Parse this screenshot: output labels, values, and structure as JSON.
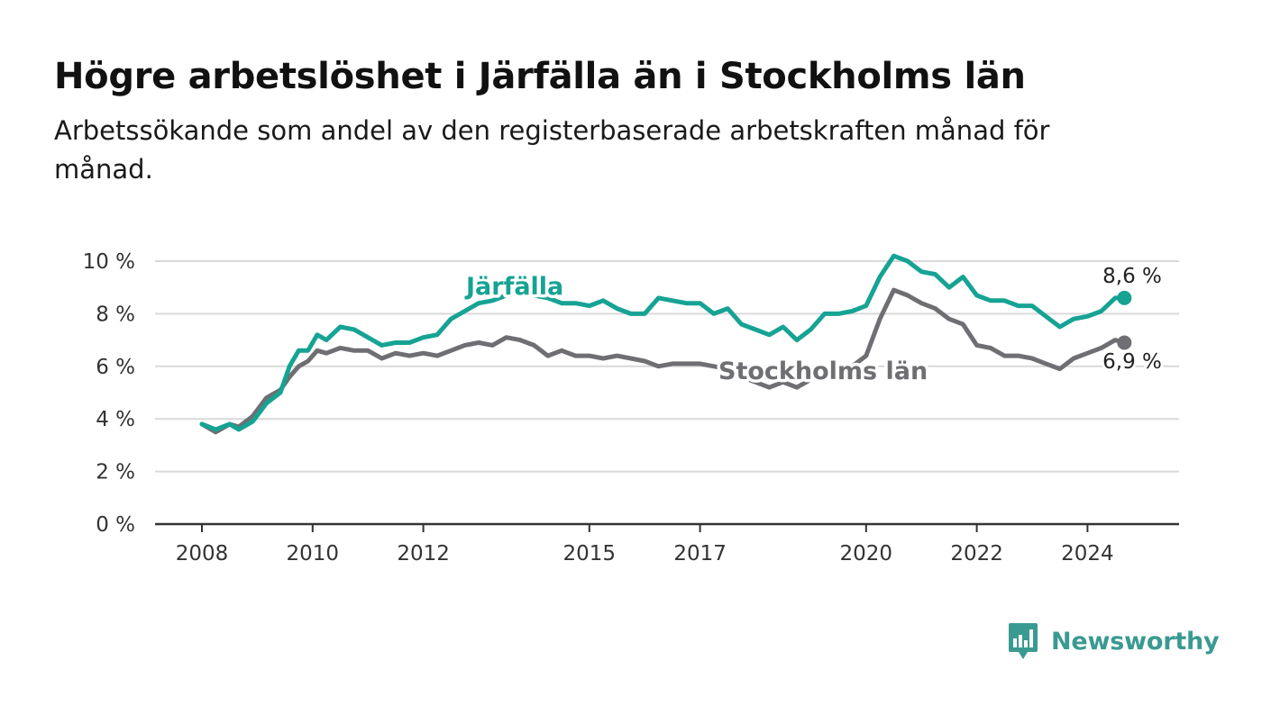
{
  "title": "Högre arbetslöshet i Järfälla än i Stockholms län",
  "subtitle": "Arbetssökande som andel av den registerbaserade arbetskraften månad för månad.",
  "brand": {
    "name": "Newsworthy",
    "color": "#3a9a92"
  },
  "chart_data": {
    "type": "line",
    "ylim": [
      0,
      10
    ],
    "y_ticks": [
      "0 %",
      "2 %",
      "4 %",
      "6 %",
      "8 %",
      "10 %"
    ],
    "x_ticks": [
      "2008",
      "2010",
      "2012",
      "2015",
      "2017",
      "2020",
      "2022",
      "2024"
    ],
    "grid": true,
    "series": [
      {
        "name": "Järfälla",
        "color": "#16a394",
        "end_label": "8,6 %",
        "points": [
          [
            "2008-01",
            3.8
          ],
          [
            "2008-04",
            3.6
          ],
          [
            "2008-07",
            3.8
          ],
          [
            "2008-09",
            3.6
          ],
          [
            "2008-12",
            3.9
          ],
          [
            "2009-03",
            4.6
          ],
          [
            "2009-06",
            5.0
          ],
          [
            "2009-08",
            6.0
          ],
          [
            "2009-10",
            6.6
          ],
          [
            "2009-12",
            6.6
          ],
          [
            "2010-02",
            7.2
          ],
          [
            "2010-04",
            7.0
          ],
          [
            "2010-07",
            7.5
          ],
          [
            "2010-10",
            7.4
          ],
          [
            "2011-01",
            7.1
          ],
          [
            "2011-04",
            6.8
          ],
          [
            "2011-07",
            6.9
          ],
          [
            "2011-10",
            6.9
          ],
          [
            "2012-01",
            7.1
          ],
          [
            "2012-04",
            7.2
          ],
          [
            "2012-07",
            7.8
          ],
          [
            "2012-10",
            8.1
          ],
          [
            "2013-01",
            8.4
          ],
          [
            "2013-04",
            8.5
          ],
          [
            "2013-07",
            8.7
          ],
          [
            "2013-10",
            8.9
          ],
          [
            "2014-01",
            8.7
          ],
          [
            "2014-04",
            8.6
          ],
          [
            "2014-07",
            8.4
          ],
          [
            "2014-10",
            8.4
          ],
          [
            "2015-01",
            8.3
          ],
          [
            "2015-04",
            8.5
          ],
          [
            "2015-07",
            8.2
          ],
          [
            "2015-10",
            8.0
          ],
          [
            "2016-01",
            8.0
          ],
          [
            "2016-04",
            8.6
          ],
          [
            "2016-07",
            8.5
          ],
          [
            "2016-10",
            8.4
          ],
          [
            "2017-01",
            8.4
          ],
          [
            "2017-04",
            8.0
          ],
          [
            "2017-07",
            8.2
          ],
          [
            "2017-10",
            7.6
          ],
          [
            "2018-01",
            7.4
          ],
          [
            "2018-04",
            7.2
          ],
          [
            "2018-07",
            7.5
          ],
          [
            "2018-10",
            7.0
          ],
          [
            "2019-01",
            7.4
          ],
          [
            "2019-04",
            8.0
          ],
          [
            "2019-07",
            8.0
          ],
          [
            "2019-10",
            8.1
          ],
          [
            "2020-01",
            8.3
          ],
          [
            "2020-04",
            9.4
          ],
          [
            "2020-07",
            10.2
          ],
          [
            "2020-10",
            10.0
          ],
          [
            "2021-01",
            9.6
          ],
          [
            "2021-04",
            9.5
          ],
          [
            "2021-07",
            9.0
          ],
          [
            "2021-10",
            9.4
          ],
          [
            "2022-01",
            8.7
          ],
          [
            "2022-04",
            8.5
          ],
          [
            "2022-07",
            8.5
          ],
          [
            "2022-10",
            8.3
          ],
          [
            "2023-01",
            8.3
          ],
          [
            "2023-04",
            7.9
          ],
          [
            "2023-07",
            7.5
          ],
          [
            "2023-10",
            7.8
          ],
          [
            "2024-01",
            7.9
          ],
          [
            "2024-04",
            8.1
          ],
          [
            "2024-07",
            8.6
          ],
          [
            "2024-09",
            8.6
          ]
        ]
      },
      {
        "name": "Stockholms län",
        "color": "#6f6e72",
        "end_label": "6,9 %",
        "points": [
          [
            "2008-01",
            3.8
          ],
          [
            "2008-04",
            3.5
          ],
          [
            "2008-07",
            3.8
          ],
          [
            "2008-09",
            3.7
          ],
          [
            "2008-12",
            4.1
          ],
          [
            "2009-03",
            4.8
          ],
          [
            "2009-06",
            5.1
          ],
          [
            "2009-08",
            5.6
          ],
          [
            "2009-10",
            6.0
          ],
          [
            "2009-12",
            6.2
          ],
          [
            "2010-02",
            6.6
          ],
          [
            "2010-04",
            6.5
          ],
          [
            "2010-07",
            6.7
          ],
          [
            "2010-10",
            6.6
          ],
          [
            "2011-01",
            6.6
          ],
          [
            "2011-04",
            6.3
          ],
          [
            "2011-07",
            6.5
          ],
          [
            "2011-10",
            6.4
          ],
          [
            "2012-01",
            6.5
          ],
          [
            "2012-04",
            6.4
          ],
          [
            "2012-07",
            6.6
          ],
          [
            "2012-10",
            6.8
          ],
          [
            "2013-01",
            6.9
          ],
          [
            "2013-04",
            6.8
          ],
          [
            "2013-07",
            7.1
          ],
          [
            "2013-10",
            7.0
          ],
          [
            "2014-01",
            6.8
          ],
          [
            "2014-04",
            6.4
          ],
          [
            "2014-07",
            6.6
          ],
          [
            "2014-10",
            6.4
          ],
          [
            "2015-01",
            6.4
          ],
          [
            "2015-04",
            6.3
          ],
          [
            "2015-07",
            6.4
          ],
          [
            "2015-10",
            6.3
          ],
          [
            "2016-01",
            6.2
          ],
          [
            "2016-04",
            6.0
          ],
          [
            "2016-07",
            6.1
          ],
          [
            "2016-10",
            6.1
          ],
          [
            "2017-01",
            6.1
          ],
          [
            "2017-04",
            6.0
          ],
          [
            "2017-07",
            5.9
          ],
          [
            "2017-10",
            5.6
          ],
          [
            "2018-01",
            5.4
          ],
          [
            "2018-04",
            5.2
          ],
          [
            "2018-07",
            5.4
          ],
          [
            "2018-10",
            5.2
          ],
          [
            "2019-01",
            5.5
          ],
          [
            "2019-04",
            5.9
          ],
          [
            "2019-07",
            5.9
          ],
          [
            "2019-10",
            6.0
          ],
          [
            "2020-01",
            6.4
          ],
          [
            "2020-04",
            7.8
          ],
          [
            "2020-07",
            8.9
          ],
          [
            "2020-10",
            8.7
          ],
          [
            "2021-01",
            8.4
          ],
          [
            "2021-04",
            8.2
          ],
          [
            "2021-07",
            7.8
          ],
          [
            "2021-10",
            7.6
          ],
          [
            "2022-01",
            6.8
          ],
          [
            "2022-04",
            6.7
          ],
          [
            "2022-07",
            6.4
          ],
          [
            "2022-10",
            6.4
          ],
          [
            "2023-01",
            6.3
          ],
          [
            "2023-04",
            6.1
          ],
          [
            "2023-07",
            5.9
          ],
          [
            "2023-10",
            6.3
          ],
          [
            "2024-01",
            6.5
          ],
          [
            "2024-04",
            6.7
          ],
          [
            "2024-07",
            7.0
          ],
          [
            "2024-09",
            6.9
          ]
        ]
      }
    ]
  }
}
